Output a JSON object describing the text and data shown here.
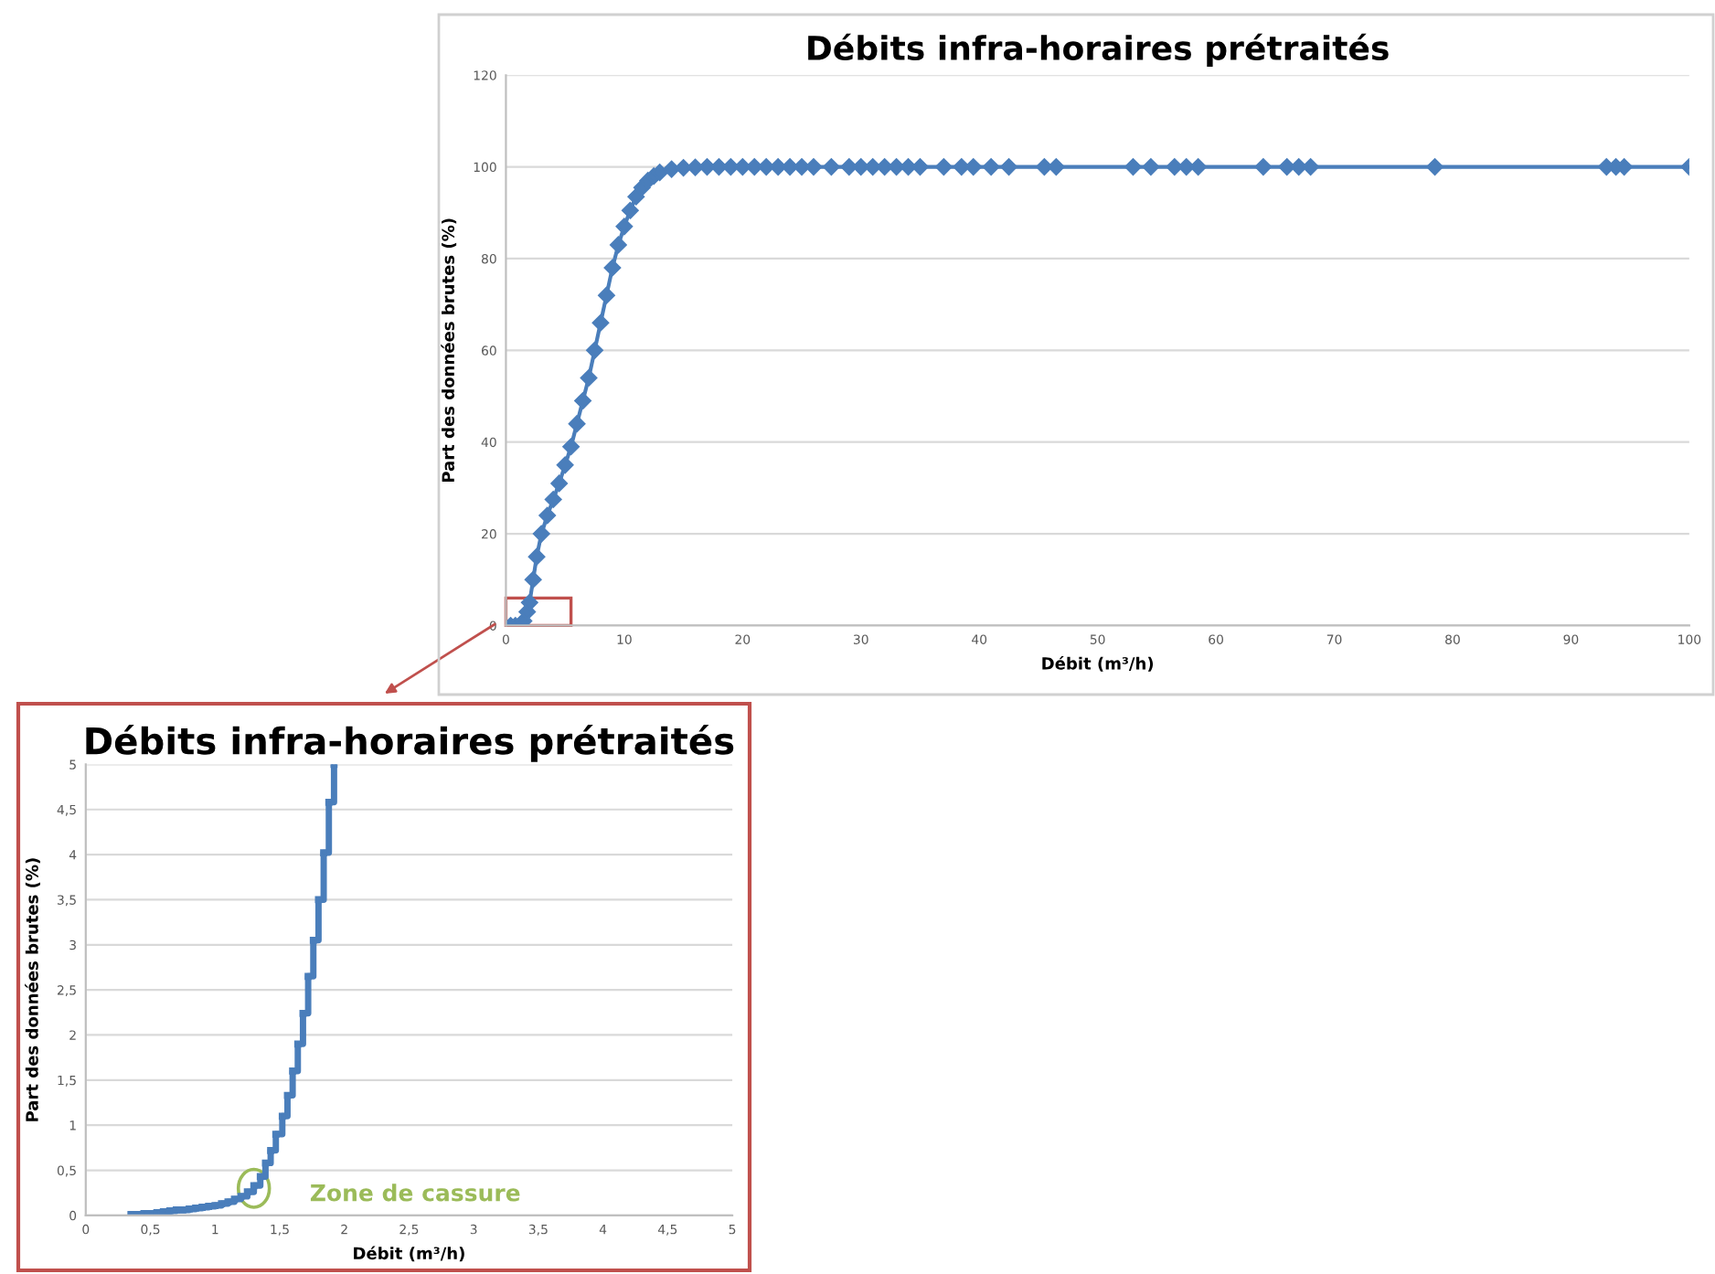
{
  "chart_data": [
    {
      "type": "line",
      "title": "Débits infra-horaires prétraités",
      "xlabel": "Débit (m³/h)",
      "ylabel": "Part des données brutes (%)",
      "marker": "diamond",
      "line_style": "solid",
      "grid": "y",
      "legend": false,
      "series": [
        {
          "color": "#4a7ebb",
          "x": [
            0.4,
            0.8,
            1.2,
            1.5,
            1.8,
            2.0,
            2.3,
            2.6,
            3.0,
            3.5,
            4,
            4.5,
            5,
            5.5,
            6,
            6.5,
            7,
            7.5,
            8,
            8.5,
            9,
            9.5,
            10,
            10.5,
            11,
            11.5,
            12,
            12.5,
            13,
            14,
            15,
            16,
            17,
            18,
            19,
            20,
            21,
            22,
            23,
            24,
            25,
            26,
            27.5,
            29,
            30,
            31,
            32,
            33,
            34,
            35,
            37,
            38.5,
            39.5,
            41,
            42.5,
            45.5,
            46.5,
            53,
            54.5,
            56.5,
            57.5,
            58.5,
            64,
            66,
            67,
            68,
            78.5,
            93,
            93.8,
            94.5,
            100
          ],
          "values": [
            0,
            0,
            0.2,
            1,
            3,
            5,
            10,
            15,
            20,
            24,
            27.5,
            31,
            35,
            39,
            44,
            49,
            54,
            60,
            66,
            72,
            78,
            83,
            87,
            90.5,
            93.5,
            95.5,
            97,
            98,
            98.8,
            99.5,
            99.8,
            99.9,
            100,
            100,
            100,
            100,
            100,
            100,
            100,
            100,
            100,
            100,
            100,
            100,
            100,
            100,
            100,
            100,
            100,
            100,
            100,
            100,
            100,
            100,
            100,
            100,
            100,
            100,
            100,
            100,
            100,
            100,
            100,
            100,
            100,
            100,
            100,
            100,
            100,
            100,
            100
          ]
        }
      ],
      "xlim": [
        0,
        100
      ],
      "xticks": [
        0,
        10,
        20,
        30,
        40,
        50,
        60,
        70,
        80,
        90,
        100
      ],
      "ylim": [
        0,
        120
      ],
      "yticks": [
        0,
        20,
        40,
        60,
        80,
        100,
        120
      ]
    },
    {
      "type": "step",
      "title": "Débits infra-horaires prétraités",
      "xlabel": "Débit (m³/h)",
      "ylabel": "Part des données brutes (%)",
      "marker": "square",
      "line_style": "solid",
      "grid": "y",
      "legend": false,
      "series": [
        {
          "color": "#4a7ebb",
          "x": [
            0.35,
            0.4,
            0.45,
            0.5,
            0.55,
            0.6,
            0.65,
            0.7,
            0.75,
            0.8,
            0.85,
            0.9,
            0.95,
            1.0,
            1.05,
            1.1,
            1.15,
            1.2,
            1.25,
            1.3,
            1.35,
            1.39,
            1.43,
            1.47,
            1.52,
            1.56,
            1.6,
            1.64,
            1.68,
            1.72,
            1.76,
            1.8,
            1.84,
            1.88,
            1.92
          ],
          "values": [
            0.01,
            0.01,
            0.02,
            0.02,
            0.03,
            0.04,
            0.05,
            0.06,
            0.06,
            0.07,
            0.08,
            0.09,
            0.1,
            0.11,
            0.13,
            0.15,
            0.18,
            0.21,
            0.26,
            0.33,
            0.43,
            0.58,
            0.72,
            0.9,
            1.1,
            1.33,
            1.6,
            1.9,
            2.24,
            2.65,
            3.05,
            3.5,
            4.02,
            4.58,
            5
          ]
        }
      ],
      "xlim": [
        0,
        5
      ],
      "xticks": [
        0,
        {
          "value": 0.5,
          "label": "0,5"
        },
        1,
        {
          "value": 1.5,
          "label": "1,5"
        },
        2,
        {
          "value": 2.5,
          "label": "2,5"
        },
        3,
        {
          "value": 3.5,
          "label": "3,5"
        },
        4,
        {
          "value": 4.5,
          "label": "4,5"
        },
        5
      ],
      "ylim": [
        0,
        5
      ],
      "yticks": [
        0,
        {
          "value": 0.5,
          "label": "0,5"
        },
        1,
        {
          "value": 1.5,
          "label": "1,5"
        },
        2,
        {
          "value": 2.5,
          "label": "2,5"
        },
        3,
        {
          "value": 3.5,
          "label": "3,5"
        },
        4,
        {
          "value": 4.5,
          "label": "4,5"
        },
        5
      ],
      "annotations": [
        {
          "text": "Zone de cassure",
          "x": 1.3,
          "y": 0.3
        }
      ]
    }
  ]
}
